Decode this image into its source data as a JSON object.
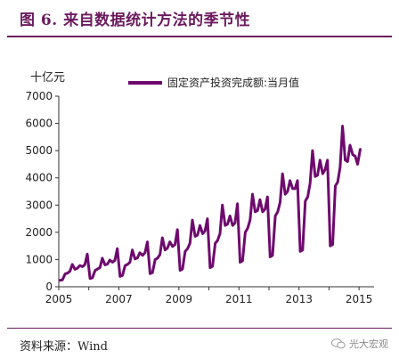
{
  "figure_title": "图 6. 来自数据统计方法的季节性",
  "unit_label": "十亿元",
  "source": "资料来源：Wind",
  "watermark": "光大宏观",
  "colors": {
    "title": "#6b1a5e",
    "series": "#6e0a6e"
  },
  "chart_data": {
    "type": "line",
    "xlabel": "",
    "ylabel": "十亿元",
    "xlim": [
      2005.0,
      2015.5
    ],
    "ylim": [
      0,
      7000
    ],
    "yticks": [
      0,
      1000,
      2000,
      3000,
      4000,
      5000,
      6000,
      7000
    ],
    "xticks": [
      2005,
      2007,
      2009,
      2011,
      2013,
      2015
    ],
    "grid": false,
    "legend": "top-center",
    "series": [
      {
        "name": "固定资产投资完成额:当月值",
        "points": [
          [
            2005.04,
            240
          ],
          [
            2005.12,
            250
          ],
          [
            2005.21,
            470
          ],
          [
            2005.29,
            500
          ],
          [
            2005.37,
            570
          ],
          [
            2005.45,
            820
          ],
          [
            2005.54,
            640
          ],
          [
            2005.62,
            680
          ],
          [
            2005.7,
            780
          ],
          [
            2005.79,
            740
          ],
          [
            2005.87,
            810
          ],
          [
            2005.95,
            1200
          ],
          [
            2006.04,
            300
          ],
          [
            2006.12,
            330
          ],
          [
            2006.21,
            600
          ],
          [
            2006.29,
            650
          ],
          [
            2006.37,
            700
          ],
          [
            2006.45,
            1050
          ],
          [
            2006.54,
            800
          ],
          [
            2006.62,
            830
          ],
          [
            2006.7,
            980
          ],
          [
            2006.79,
            900
          ],
          [
            2006.87,
            970
          ],
          [
            2006.95,
            1400
          ],
          [
            2007.04,
            380
          ],
          [
            2007.12,
            420
          ],
          [
            2007.21,
            780
          ],
          [
            2007.29,
            820
          ],
          [
            2007.37,
            900
          ],
          [
            2007.45,
            1350
          ],
          [
            2007.54,
            1020
          ],
          [
            2007.62,
            1060
          ],
          [
            2007.7,
            1250
          ],
          [
            2007.79,
            1150
          ],
          [
            2007.87,
            1250
          ],
          [
            2007.95,
            1650
          ],
          [
            2008.04,
            480
          ],
          [
            2008.12,
            520
          ],
          [
            2008.21,
            1000
          ],
          [
            2008.29,
            1050
          ],
          [
            2008.37,
            1180
          ],
          [
            2008.45,
            1800
          ],
          [
            2008.54,
            1350
          ],
          [
            2008.62,
            1420
          ],
          [
            2008.7,
            1650
          ],
          [
            2008.79,
            1480
          ],
          [
            2008.87,
            1550
          ],
          [
            2008.95,
            2100
          ],
          [
            2009.04,
            600
          ],
          [
            2009.12,
            650
          ],
          [
            2009.21,
            1300
          ],
          [
            2009.29,
            1400
          ],
          [
            2009.37,
            1600
          ],
          [
            2009.45,
            2450
          ],
          [
            2009.54,
            1850
          ],
          [
            2009.62,
            1900
          ],
          [
            2009.7,
            2250
          ],
          [
            2009.79,
            1950
          ],
          [
            2009.87,
            2050
          ],
          [
            2009.95,
            2500
          ],
          [
            2010.04,
            700
          ],
          [
            2010.12,
            750
          ],
          [
            2010.21,
            1600
          ],
          [
            2010.29,
            1700
          ],
          [
            2010.37,
            1950
          ],
          [
            2010.45,
            3000
          ],
          [
            2010.54,
            2250
          ],
          [
            2010.62,
            2300
          ],
          [
            2010.7,
            2600
          ],
          [
            2010.79,
            2250
          ],
          [
            2010.87,
            2350
          ],
          [
            2010.95,
            3050
          ],
          [
            2011.04,
            900
          ],
          [
            2011.12,
            950
          ],
          [
            2011.21,
            2000
          ],
          [
            2011.29,
            2150
          ],
          [
            2011.37,
            2450
          ],
          [
            2011.45,
            3400
          ],
          [
            2011.54,
            2750
          ],
          [
            2011.62,
            2800
          ],
          [
            2011.7,
            3200
          ],
          [
            2011.79,
            2750
          ],
          [
            2011.87,
            2850
          ],
          [
            2011.95,
            3300
          ],
          [
            2012.04,
            1100
          ],
          [
            2012.12,
            1150
          ],
          [
            2012.21,
            2600
          ],
          [
            2012.29,
            2750
          ],
          [
            2012.37,
            3100
          ],
          [
            2012.45,
            4150
          ],
          [
            2012.54,
            3400
          ],
          [
            2012.62,
            3500
          ],
          [
            2012.7,
            3900
          ],
          [
            2012.79,
            3600
          ],
          [
            2012.87,
            3600
          ],
          [
            2012.95,
            3900
          ],
          [
            2013.04,
            1300
          ],
          [
            2013.12,
            1350
          ],
          [
            2013.21,
            3150
          ],
          [
            2013.29,
            3300
          ],
          [
            2013.37,
            3800
          ],
          [
            2013.45,
            5000
          ],
          [
            2013.54,
            4050
          ],
          [
            2013.62,
            4100
          ],
          [
            2013.7,
            4650
          ],
          [
            2013.79,
            4150
          ],
          [
            2013.87,
            4300
          ],
          [
            2013.95,
            4650
          ],
          [
            2014.04,
            1500
          ],
          [
            2014.12,
            1550
          ],
          [
            2014.21,
            3700
          ],
          [
            2014.29,
            3850
          ],
          [
            2014.37,
            4400
          ],
          [
            2014.45,
            5900
          ],
          [
            2014.54,
            4650
          ],
          [
            2014.62,
            4600
          ],
          [
            2014.7,
            5200
          ],
          [
            2014.79,
            4850
          ],
          [
            2014.87,
            4800
          ],
          [
            2014.95,
            4500
          ],
          [
            2015.04,
            5050
          ]
        ]
      }
    ]
  }
}
